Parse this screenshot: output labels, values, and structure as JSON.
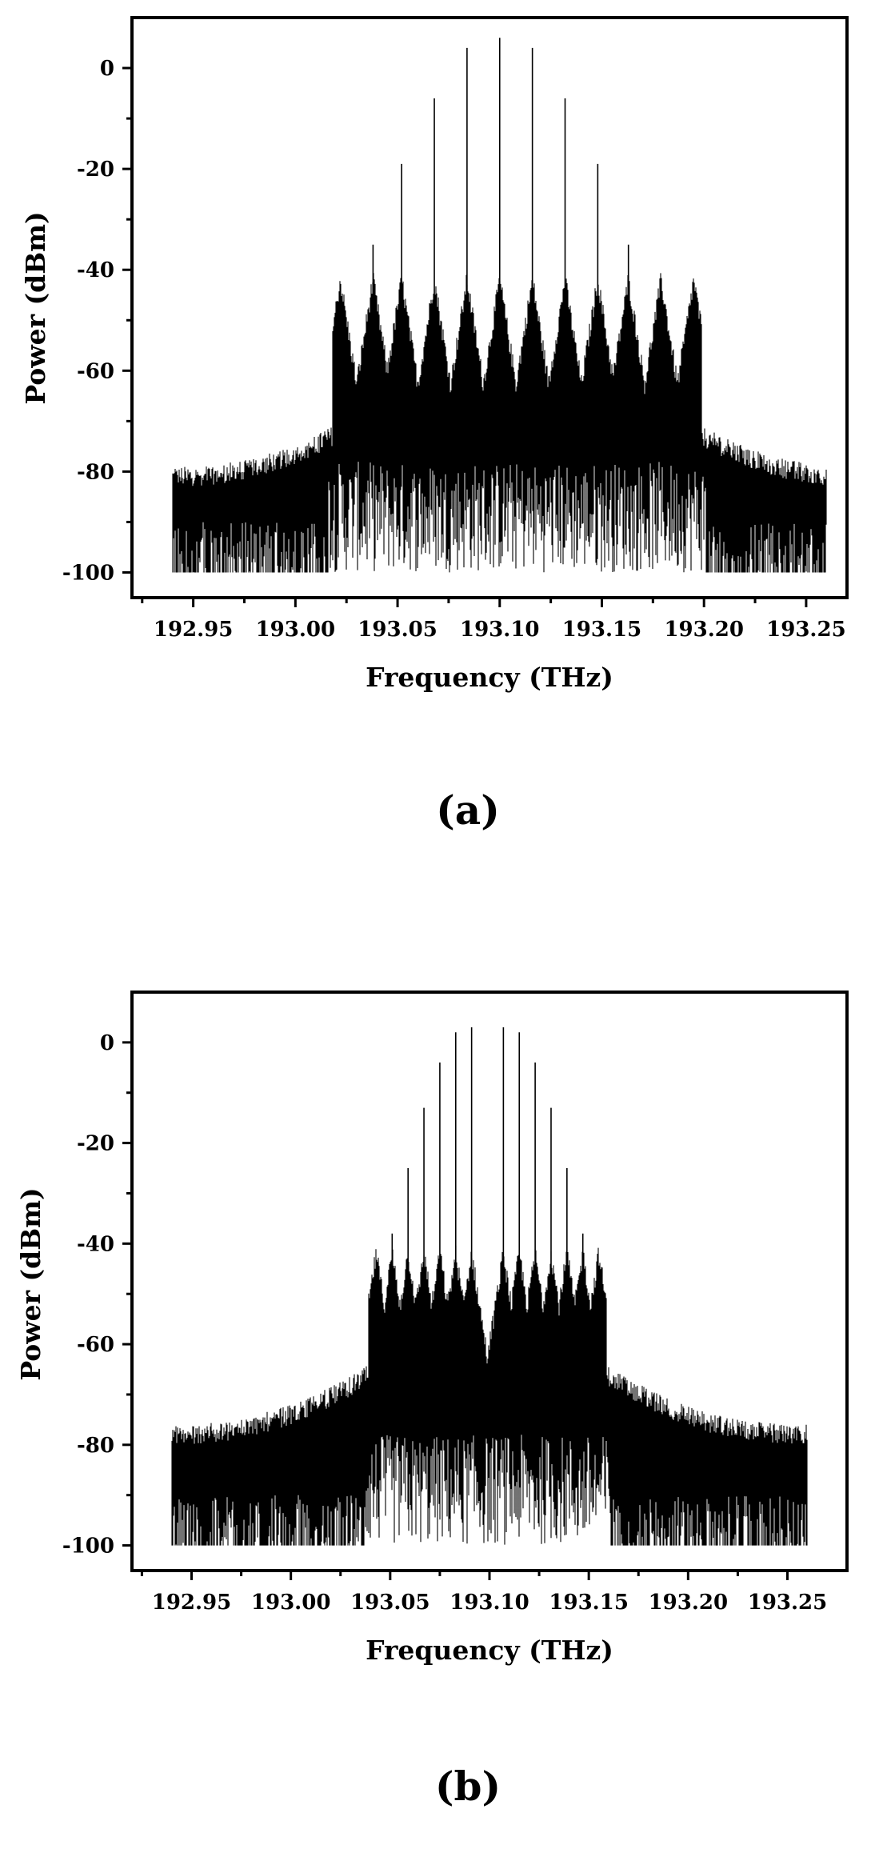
{
  "chart_data": [
    {
      "type": "line",
      "panel_label": "(a)",
      "xlabel": "Frequency (THz)",
      "ylabel": "Power (dBm)",
      "xlim": [
        192.92,
        193.27
      ],
      "ylim": [
        -105,
        10
      ],
      "x_ticks": [
        192.95,
        193.0,
        193.05,
        193.1,
        193.15,
        193.2,
        193.25
      ],
      "x_tick_labels": [
        "192.95",
        "193.00",
        "193.05",
        "193.10",
        "193.15",
        "193.20",
        "193.25"
      ],
      "y_ticks": [
        0,
        -20,
        -40,
        -60,
        -80,
        -100
      ],
      "y_tick_labels": [
        "0",
        "-20",
        "-40",
        "-60",
        "-80",
        "-100"
      ],
      "x_range_data": [
        192.94,
        193.26
      ],
      "noise_floor": {
        "low": -100,
        "high_at_edges": -81,
        "high_near_center": -72
      },
      "grid": false,
      "series": [
        {
          "lines_x": [
            193.022,
            193.038,
            193.052,
            193.068,
            193.084,
            193.1,
            193.116,
            193.132,
            193.148,
            193.163,
            193.179,
            193.195
          ],
          "lines_y": [
            -52,
            -35,
            -19,
            -6,
            4,
            6,
            4,
            -6,
            -19,
            -35,
            -52,
            -70
          ]
        }
      ]
    },
    {
      "type": "line",
      "panel_label": "(b)",
      "xlabel": "Frequency (THz)",
      "ylabel": "Power (dBm)",
      "xlim": [
        192.92,
        193.28
      ],
      "ylim": [
        -105,
        10
      ],
      "x_ticks": [
        192.95,
        193.0,
        193.05,
        193.1,
        193.15,
        193.2,
        193.25
      ],
      "x_tick_labels": [
        "192.95",
        "193.00",
        "193.05",
        "193.10",
        "193.15",
        "193.20",
        "193.25"
      ],
      "y_ticks": [
        0,
        -20,
        -40,
        -60,
        -80,
        -100
      ],
      "y_tick_labels": [
        "0",
        "-20",
        "-40",
        "-60",
        "-80",
        "-100"
      ],
      "x_range_data": [
        192.94,
        193.26
      ],
      "noise_floor": {
        "low": -100,
        "high_at_edges": -78,
        "high_near_center": -65
      },
      "grid": false,
      "series": [
        {
          "lines_x": [
            193.043,
            193.051,
            193.059,
            193.067,
            193.075,
            193.083,
            193.091,
            193.107,
            193.115,
            193.123,
            193.131,
            193.139,
            193.147,
            193.155
          ],
          "lines_y": [
            -53,
            -38,
            -25,
            -13,
            -4,
            2,
            3,
            3,
            2,
            -4,
            -13,
            -25,
            -38,
            -53
          ]
        }
      ]
    }
  ]
}
